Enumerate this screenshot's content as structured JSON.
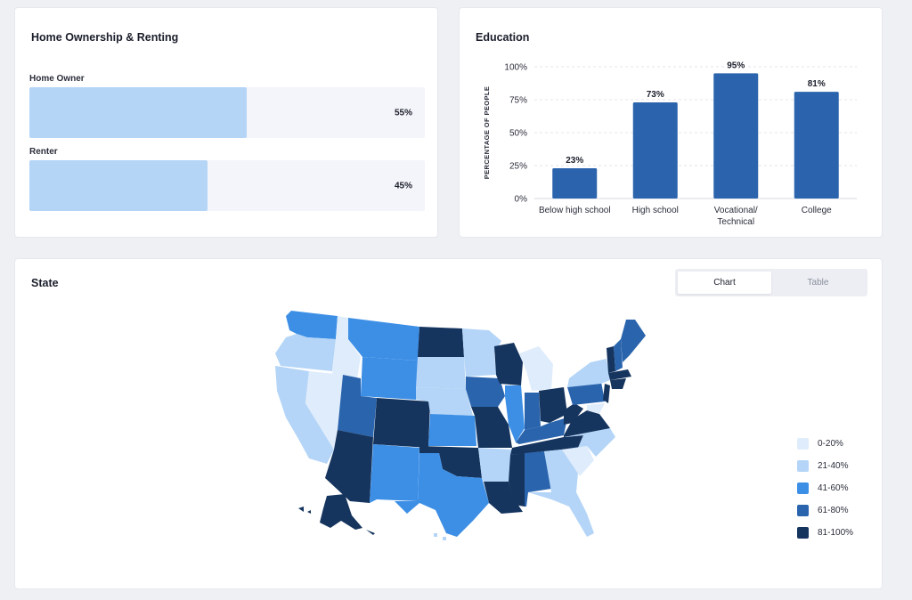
{
  "home": {
    "title": "Home Ownership & Renting",
    "bars": [
      {
        "label": "Home Owner",
        "value": 55,
        "pct_label": "55%"
      },
      {
        "label": "Renter",
        "value": 45,
        "pct_label": "45%"
      }
    ]
  },
  "education": {
    "title": "Education",
    "chart_data": {
      "type": "bar",
      "categories": [
        "Below high school",
        "High school",
        "Vocational/ Technical",
        "College"
      ],
      "category_lines": [
        [
          "Below high school"
        ],
        [
          "High school"
        ],
        [
          "Vocational/",
          "Technical"
        ],
        [
          "College"
        ]
      ],
      "values": [
        23,
        73,
        95,
        81
      ],
      "value_labels": [
        "23%",
        "73%",
        "95%",
        "81%"
      ],
      "ylabel": "PERCENTAGE OF PEOPLE",
      "ylim": [
        0,
        100
      ],
      "yticks": [
        0,
        25,
        50,
        75,
        100
      ],
      "ytick_labels": [
        "0%",
        "25%",
        "50%",
        "75%",
        "100%"
      ],
      "grid": true,
      "bar_color": "#2b64ad"
    }
  },
  "state": {
    "title": "State",
    "toggle": {
      "chart_label": "Chart",
      "table_label": "Table",
      "selected": "Chart"
    },
    "legend": [
      {
        "label": "0-20%",
        "color": "#dfecfb"
      },
      {
        "label": "21-40%",
        "color": "#b4d5f7"
      },
      {
        "label": "41-60%",
        "color": "#3d8fe6"
      },
      {
        "label": "61-80%",
        "color": "#2a64ad"
      },
      {
        "label": "81-100%",
        "color": "#15345e"
      }
    ]
  }
}
